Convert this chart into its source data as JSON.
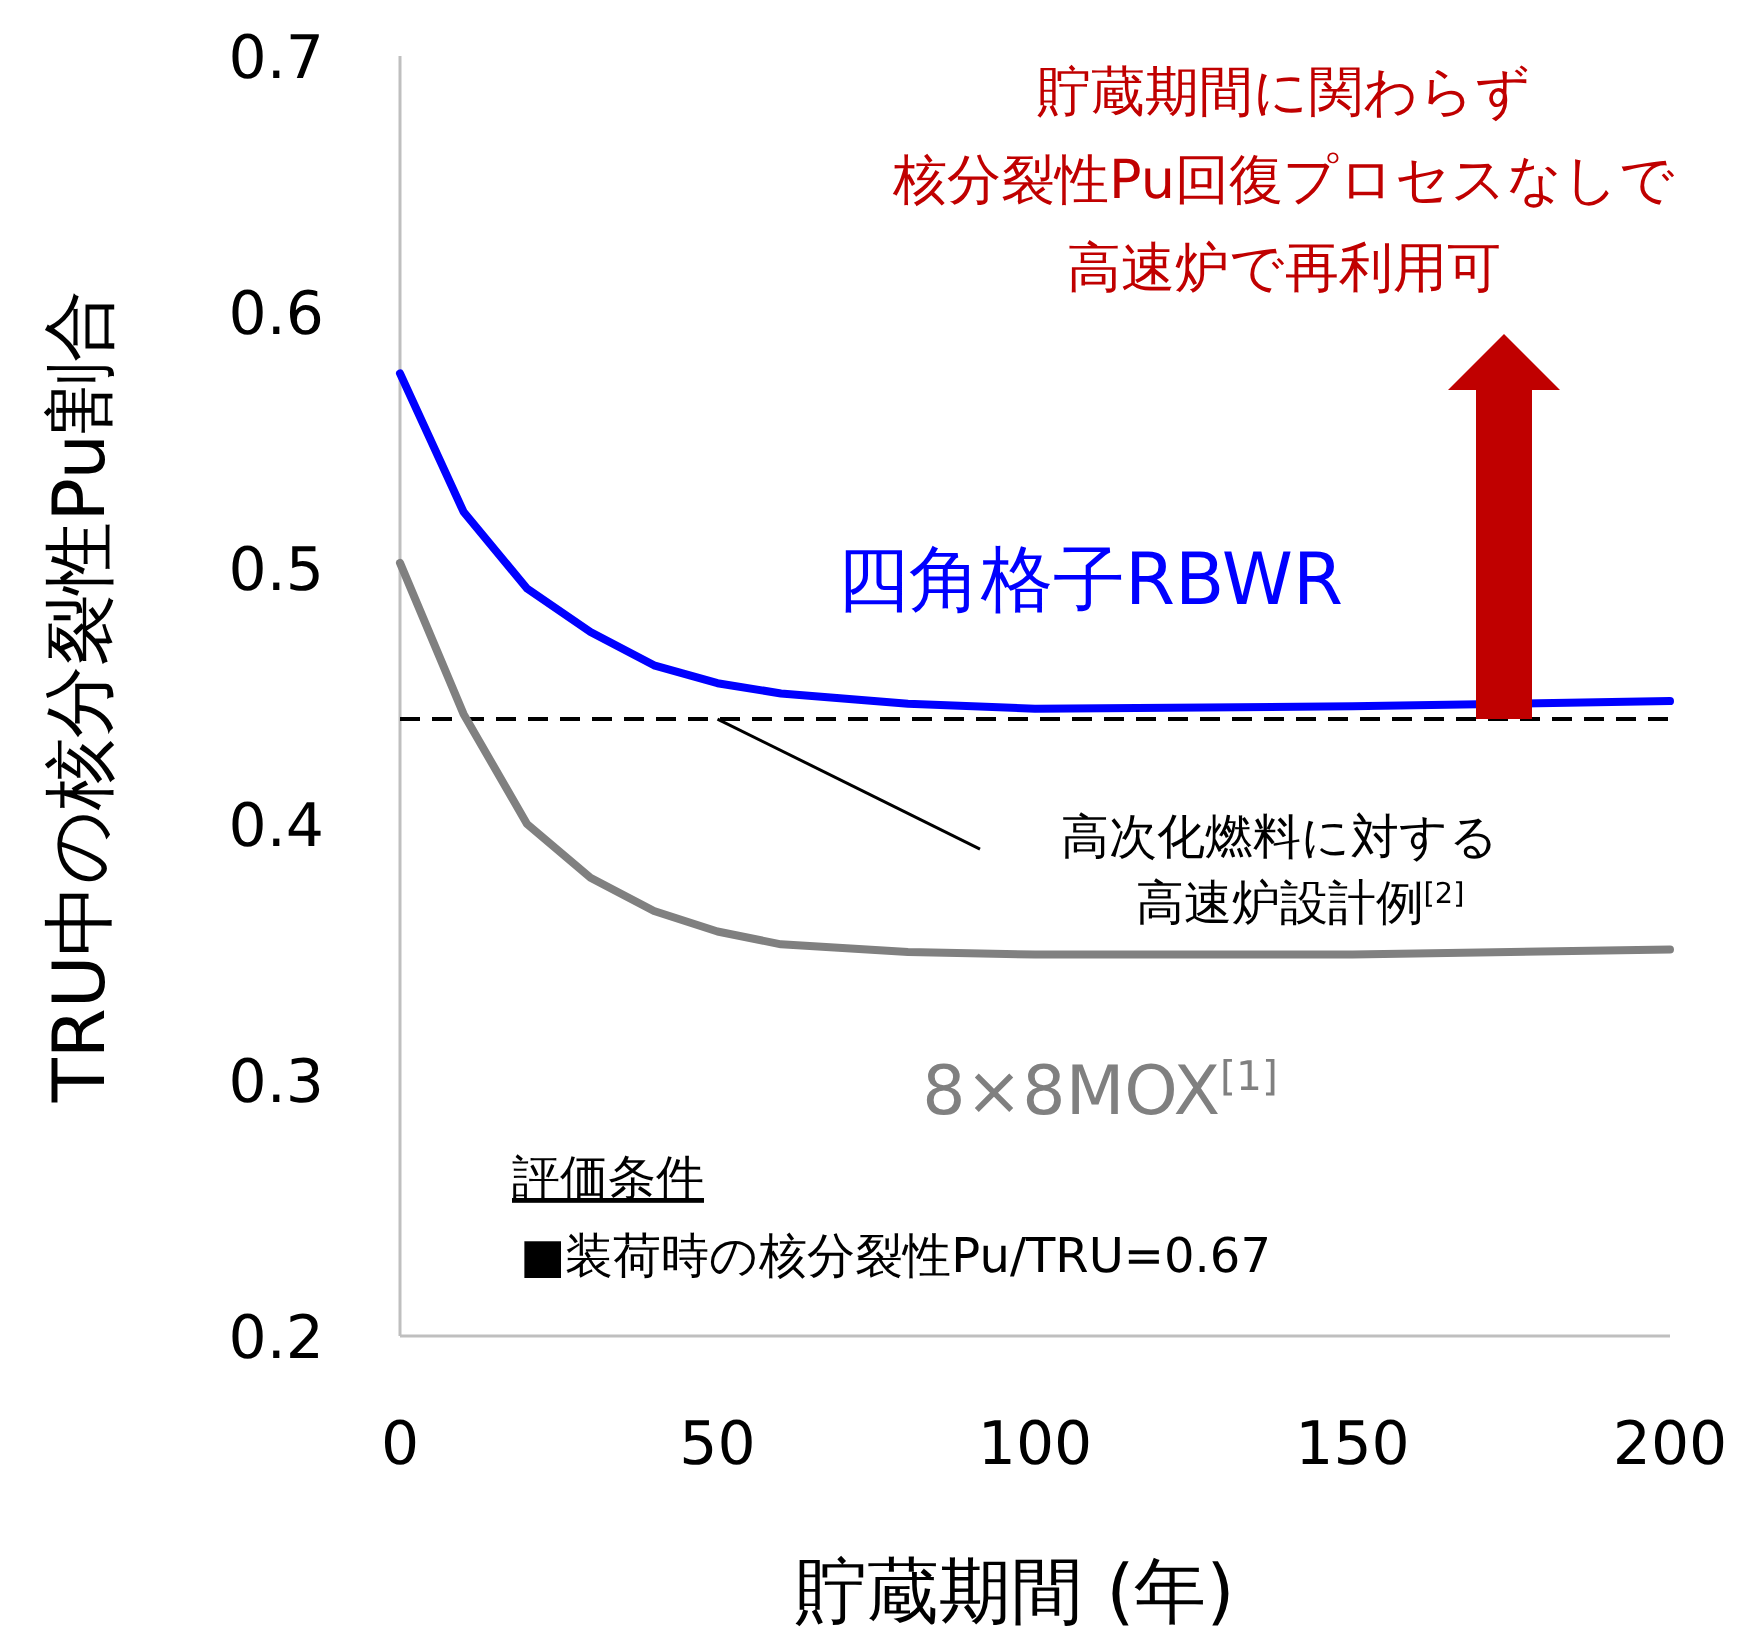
{
  "chart_data": {
    "type": "line",
    "xlabel": "貯蔵期間 (年)",
    "ylabel": "TRU中の核分裂性Pu割合",
    "x": [
      0,
      10,
      20,
      30,
      40,
      50,
      60,
      80,
      100,
      150,
      200
    ],
    "series": [
      {
        "name": "四角格子RBWR",
        "color": "#0000ff",
        "values": [
          0.576,
          0.522,
          0.492,
          0.475,
          0.462,
          0.455,
          0.451,
          0.447,
          0.445,
          0.446,
          0.448
        ]
      },
      {
        "name": "8×8MOX$^{[1]}$",
        "color": "#808080",
        "values": [
          0.502,
          0.443,
          0.4,
          0.379,
          0.366,
          0.358,
          0.353,
          0.35,
          0.349,
          0.349,
          0.351
        ]
      }
    ],
    "xlim": [
      0,
      200
    ],
    "xticks": [
      0,
      50,
      100,
      150,
      200
    ],
    "ylim": [
      0.2,
      0.7
    ],
    "yticks": [
      {
        "value": 0.2,
        "label": "0.2"
      },
      {
        "value": 0.3,
        "label": "0.3"
      },
      {
        "value": 0.4,
        "label": "0.4"
      },
      {
        "value": 0.5,
        "label": "0.5"
      },
      {
        "value": 0.6,
        "label": "0.6"
      },
      {
        "value": 0.7,
        "label": "0.7"
      }
    ],
    "ref_lines": [
      {
        "axis": "y",
        "value": 0.441,
        "label": "高次化燃料に対する",
        "color": "#000000",
        "line_style": "dashed"
      }
    ],
    "annotations": [
      "貯蔵期間に関わらず",
      "核分裂性Pu回復プロセスなしで",
      "高速炉で再利用可",
      "高速炉設計例$^{[2]}$",
      "評価条件",
      "■装荷時の核分裂性Pu/TRU=0.67"
    ],
    "grid": false,
    "legend": false,
    "marker": "none",
    "line_style": "solid"
  }
}
